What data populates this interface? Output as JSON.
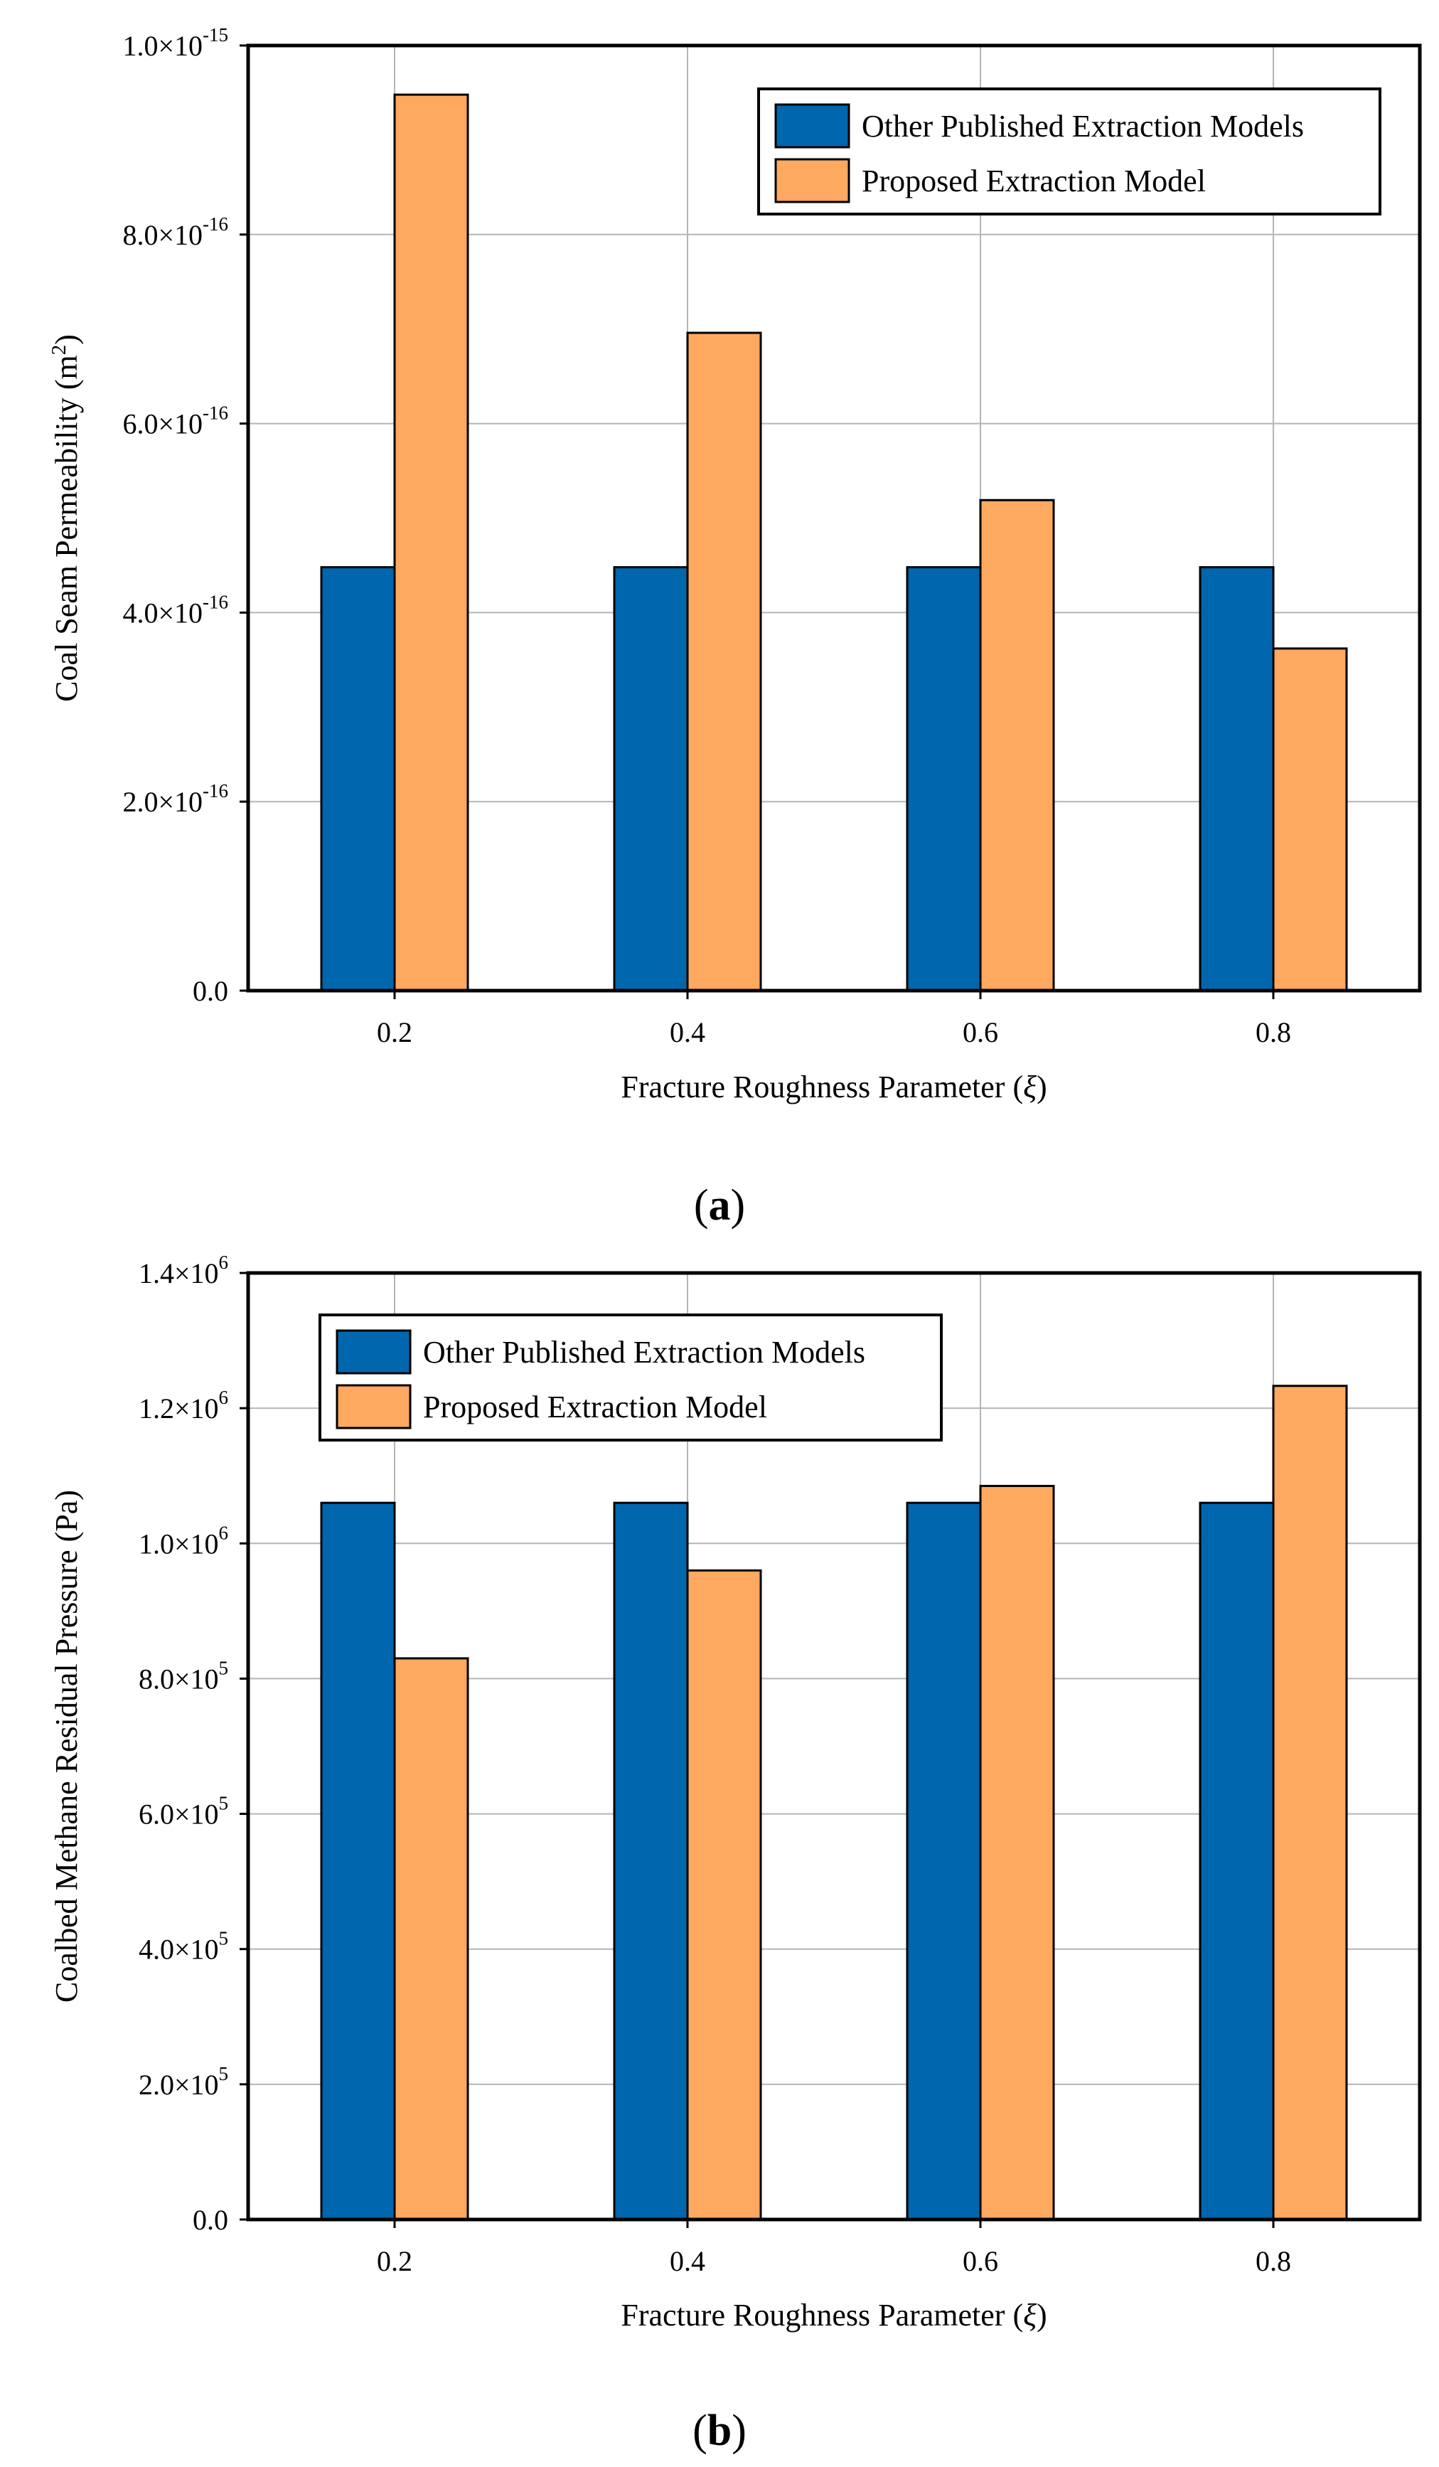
{
  "chart_data": [
    {
      "type": "bar",
      "panel_label": "a",
      "categories": [
        "0.2",
        "0.4",
        "0.6",
        "0.8"
      ],
      "series": [
        {
          "name": "Other Published Extraction Models",
          "color": "#0066AD",
          "values": [
            4.48e-16,
            4.48e-16,
            4.48e-16,
            4.48e-16
          ]
        },
        {
          "name": "Proposed Extraction Model",
          "color": "#FFA860",
          "values": [
            9.48e-16,
            6.96e-16,
            5.19e-16,
            3.62e-16
          ]
        }
      ],
      "xlabel": "Fracture Roughness Parameter (",
      "xlabel_symbol": "ξ",
      "xlabel_end": ")",
      "ylabel": "Coal Seam Permeability (m",
      "ylabel_sup": "2",
      "ylabel_end": ")",
      "ylim": [
        0,
        1e-15
      ],
      "yticks": [
        {
          "value": 0,
          "mantissa": "0.0",
          "exponent": ""
        },
        {
          "value": 2e-16,
          "mantissa": "2.0×10",
          "exponent": "-16"
        },
        {
          "value": 4e-16,
          "mantissa": "4.0×10",
          "exponent": "-16"
        },
        {
          "value": 6e-16,
          "mantissa": "6.0×10",
          "exponent": "-16"
        },
        {
          "value": 8e-16,
          "mantissa": "8.0×10",
          "exponent": "-16"
        },
        {
          "value": 1e-15,
          "mantissa": "1.0×10",
          "exponent": "-15"
        }
      ],
      "grid": true,
      "legend_position": "top-right"
    },
    {
      "type": "bar",
      "panel_label": "b",
      "categories": [
        "0.2",
        "0.4",
        "0.6",
        "0.8"
      ],
      "series": [
        {
          "name": "Other Published Extraction Models",
          "color": "#0066AD",
          "values": [
            1060000,
            1060000,
            1060000,
            1060000
          ]
        },
        {
          "name": "Proposed Extraction Model",
          "color": "#FFA860",
          "values": [
            830000,
            960000,
            1085000,
            1233000
          ]
        }
      ],
      "xlabel": "Fracture Roughness Parameter (",
      "xlabel_symbol": "ξ",
      "xlabel_end": ")",
      "ylabel": "Coalbed Methane Residual Pressure (Pa)",
      "ylabel_sup": "",
      "ylabel_end": "",
      "ylim": [
        0,
        1400000
      ],
      "yticks": [
        {
          "value": 0,
          "mantissa": "0.0",
          "exponent": ""
        },
        {
          "value": 200000,
          "mantissa": "2.0×10",
          "exponent": "5"
        },
        {
          "value": 400000,
          "mantissa": "4.0×10",
          "exponent": "5"
        },
        {
          "value": 600000,
          "mantissa": "6.0×10",
          "exponent": "5"
        },
        {
          "value": 800000,
          "mantissa": "8.0×10",
          "exponent": "5"
        },
        {
          "value": 1000000,
          "mantissa": "1.0×10",
          "exponent": "6"
        },
        {
          "value": 1200000,
          "mantissa": "1.2×10",
          "exponent": "6"
        },
        {
          "value": 1400000,
          "mantissa": "1.4×10",
          "exponent": "6"
        }
      ],
      "grid": true,
      "legend_position": "top-left"
    }
  ]
}
